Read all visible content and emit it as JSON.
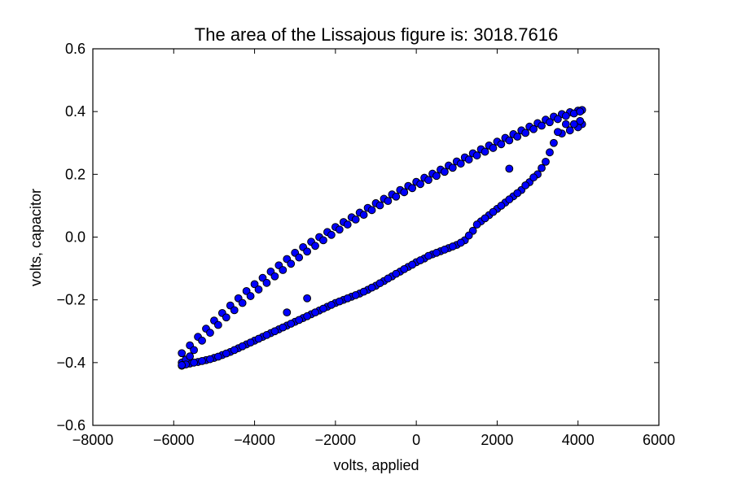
{
  "chart_data": {
    "type": "scatter",
    "title": "The area of the Lissajous figure is: 3018.7616",
    "xlabel": "volts, applied",
    "ylabel": "volts, capacitor",
    "xlim": [
      -8000,
      6000
    ],
    "ylim": [
      -0.6,
      0.6
    ],
    "xticks": [
      -8000,
      -6000,
      -4000,
      -2000,
      0,
      2000,
      4000,
      6000
    ],
    "xtick_labels": [
      "−8000",
      "−6000",
      "−4000",
      "−2000",
      "0",
      "2000",
      "4000",
      "6000"
    ],
    "yticks": [
      0.6,
      0.4,
      0.2,
      0.0,
      -0.2,
      -0.4,
      -0.6
    ],
    "ytick_labels": [
      "0.6",
      "0.4",
      "0.2",
      "0.0",
      "−0.2",
      "−0.4",
      "−0.6"
    ],
    "grid": false,
    "marker_color": "#0000ff",
    "marker_edge_color": "#000000",
    "series": [
      {
        "x": [
          -5800,
          -5600,
          -5400,
          -5200,
          -5000,
          -4800,
          -4600,
          -4400,
          -4200,
          -4000,
          -3800,
          -3600,
          -3400,
          -3200,
          -3000,
          -2800,
          -2600,
          -2400,
          -2200,
          -2000,
          -1800,
          -1600,
          -1400,
          -1200,
          -1000,
          -800,
          -600,
          -400,
          -200,
          0,
          200,
          400,
          600,
          800,
          1000,
          1200,
          1400,
          1600,
          1800,
          2000,
          2200,
          2400,
          2600,
          2800,
          3000,
          3200,
          3400,
          3600,
          3800,
          4000,
          4100
        ],
        "y": [
          -0.37,
          -0.345,
          -0.318,
          -0.292,
          -0.266,
          -0.242,
          -0.218,
          -0.195,
          -0.172,
          -0.15,
          -0.13,
          -0.11,
          -0.09,
          -0.07,
          -0.05,
          -0.032,
          -0.015,
          0.0,
          0.016,
          0.032,
          0.048,
          0.063,
          0.078,
          0.093,
          0.108,
          0.122,
          0.136,
          0.15,
          0.163,
          0.176,
          0.189,
          0.202,
          0.215,
          0.228,
          0.241,
          0.254,
          0.267,
          0.28,
          0.292,
          0.304,
          0.316,
          0.328,
          0.34,
          0.352,
          0.363,
          0.374,
          0.384,
          0.392,
          0.398,
          0.403,
          0.405
        ]
      },
      {
        "x": [
          4100,
          4000,
          3800,
          3600,
          3400,
          3200,
          3000,
          2800,
          2600,
          2400,
          2200,
          2000,
          1800,
          1600,
          1400,
          1200,
          1000,
          800,
          600,
          400,
          200,
          0,
          -200,
          -400,
          -600,
          -800,
          -1000,
          -1200,
          -1400,
          -1600,
          -1800,
          -2000,
          -2200,
          -2400,
          -2600,
          -2800,
          -3000,
          -3200,
          -3400,
          -3600,
          -3800,
          -4000,
          -4200,
          -4400,
          -4600,
          -4800,
          -5000,
          -5200,
          -5400,
          -5600,
          -5800
        ],
        "y": [
          0.36,
          0.35,
          0.34,
          0.33,
          0.3,
          0.24,
          0.2,
          0.175,
          0.15,
          0.13,
          0.11,
          0.09,
          0.07,
          0.05,
          0.02,
          -0.01,
          -0.025,
          -0.035,
          -0.045,
          -0.055,
          -0.068,
          -0.08,
          -0.095,
          -0.11,
          -0.125,
          -0.14,
          -0.155,
          -0.168,
          -0.18,
          -0.19,
          -0.2,
          -0.21,
          -0.222,
          -0.234,
          -0.246,
          -0.258,
          -0.27,
          -0.282,
          -0.294,
          -0.306,
          -0.318,
          -0.33,
          -0.342,
          -0.354,
          -0.366,
          -0.376,
          -0.385,
          -0.392,
          -0.398,
          -0.403,
          -0.41
        ]
      },
      {
        "x": [
          -5800,
          -5700,
          -5600,
          -5500,
          -5300,
          -5100,
          -4900,
          -4700,
          -4500,
          -4300,
          -4100,
          -3900,
          -3700,
          -3500,
          -3300,
          -3100,
          -2900,
          -2700,
          -2500,
          -2300,
          -2100,
          -1900,
          -1700,
          -1500,
          -1300,
          -1100,
          -900,
          -700,
          -500,
          -300,
          -100,
          100,
          300,
          500,
          700,
          900,
          1100,
          1300,
          1500,
          1700,
          1900,
          2100,
          2300,
          2500,
          2700,
          2900,
          3100,
          3300,
          3500,
          3700,
          3900,
          4050
        ],
        "y": [
          -0.4,
          -0.39,
          -0.38,
          -0.36,
          -0.33,
          -0.305,
          -0.28,
          -0.256,
          -0.233,
          -0.21,
          -0.188,
          -0.167,
          -0.146,
          -0.125,
          -0.105,
          -0.085,
          -0.065,
          -0.046,
          -0.028,
          -0.01,
          0.007,
          0.024,
          0.04,
          0.056,
          0.071,
          0.086,
          0.101,
          0.115,
          0.129,
          0.143,
          0.156,
          0.169,
          0.182,
          0.195,
          0.208,
          0.221,
          0.234,
          0.247,
          0.26,
          0.272,
          0.284,
          0.296,
          0.308,
          0.32,
          0.332,
          0.344,
          0.355,
          0.366,
          0.376,
          0.386,
          0.394,
          0.4
        ]
      },
      {
        "x": [
          4050,
          3900,
          3700,
          3500,
          3300,
          3100,
          2900,
          2700,
          2500,
          2300,
          2100,
          1900,
          1700,
          1500,
          1300,
          1100,
          900,
          700,
          500,
          300,
          100,
          -100,
          -300,
          -500,
          -700,
          -900,
          -1100,
          -1300,
          -1500,
          -1700,
          -1900,
          -2100,
          -2300,
          -2500,
          -2700,
          -2900,
          -3100,
          -3300,
          -3500,
          -3700,
          -3900,
          -4100,
          -4300,
          -4500,
          -4700,
          -4900,
          -5100,
          -5300,
          -5500,
          -5700,
          -5800
        ],
        "y": [
          0.37,
          0.36,
          0.36,
          0.335,
          0.27,
          0.22,
          0.19,
          0.165,
          0.14,
          0.12,
          0.1,
          0.08,
          0.06,
          0.04,
          0.005,
          -0.018,
          -0.03,
          -0.04,
          -0.05,
          -0.06,
          -0.074,
          -0.088,
          -0.102,
          -0.117,
          -0.132,
          -0.147,
          -0.161,
          -0.174,
          -0.185,
          -0.195,
          -0.205,
          -0.216,
          -0.228,
          -0.24,
          -0.252,
          -0.264,
          -0.276,
          -0.288,
          -0.3,
          -0.312,
          -0.324,
          -0.336,
          -0.348,
          -0.36,
          -0.371,
          -0.381,
          -0.389,
          -0.395,
          -0.4,
          -0.406,
          -0.408
        ]
      },
      {
        "x": [
          -2700,
          -3200,
          2300
        ],
        "y": [
          -0.195,
          -0.24,
          0.218
        ]
      }
    ]
  }
}
